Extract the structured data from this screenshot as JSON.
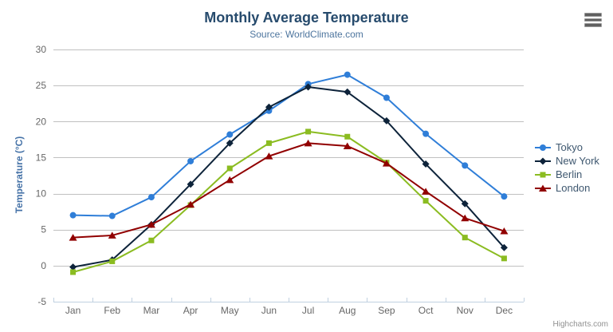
{
  "header": {
    "title": "Monthly Average Temperature",
    "subtitle": "Source: WorldClimate.com",
    "context_menu_icon": "hamburger-icon"
  },
  "credit_label": "Highcharts.com",
  "colors": {
    "title": "#274b6d",
    "subtitle": "#4d759e",
    "y_axis_title": "#4572a7",
    "axis_labels": "#666666",
    "gridline": "#C0C0C0",
    "axis_line": "#C0D0E0",
    "legend_text": "#3E576F",
    "credit": "#909090",
    "background": "#ffffff"
  },
  "chart_data": {
    "type": "line",
    "title": "Monthly Average Temperature",
    "subtitle": "Source: WorldClimate.com",
    "xlabel": "",
    "ylabel": "Temperature (°C)",
    "ylim": [
      -5,
      30
    ],
    "y_ticks": [
      -5,
      0,
      5,
      10,
      15,
      20,
      25,
      30
    ],
    "grid": true,
    "legend_position": "right",
    "categories": [
      "Jan",
      "Feb",
      "Mar",
      "Apr",
      "May",
      "Jun",
      "Jul",
      "Aug",
      "Sep",
      "Oct",
      "Nov",
      "Dec"
    ],
    "series": [
      {
        "name": "Tokyo",
        "color": "#2f7ed8",
        "marker": "circle",
        "values": [
          7.0,
          6.9,
          9.5,
          14.5,
          18.2,
          21.5,
          25.2,
          26.5,
          23.3,
          18.3,
          13.9,
          9.6
        ]
      },
      {
        "name": "New York",
        "color": "#0d233a",
        "marker": "diamond",
        "values": [
          -0.2,
          0.8,
          5.7,
          11.3,
          17.0,
          22.0,
          24.8,
          24.1,
          20.1,
          14.1,
          8.6,
          2.5
        ]
      },
      {
        "name": "Berlin",
        "color": "#8bbc21",
        "marker": "square",
        "values": [
          -0.9,
          0.6,
          3.5,
          8.4,
          13.5,
          17.0,
          18.6,
          17.9,
          14.3,
          9.0,
          3.9,
          1.0
        ]
      },
      {
        "name": "London",
        "color": "#910000",
        "marker": "triangle",
        "values": [
          3.9,
          4.2,
          5.7,
          8.5,
          11.9,
          15.2,
          17.0,
          16.6,
          14.2,
          10.3,
          6.6,
          4.8
        ]
      }
    ]
  }
}
